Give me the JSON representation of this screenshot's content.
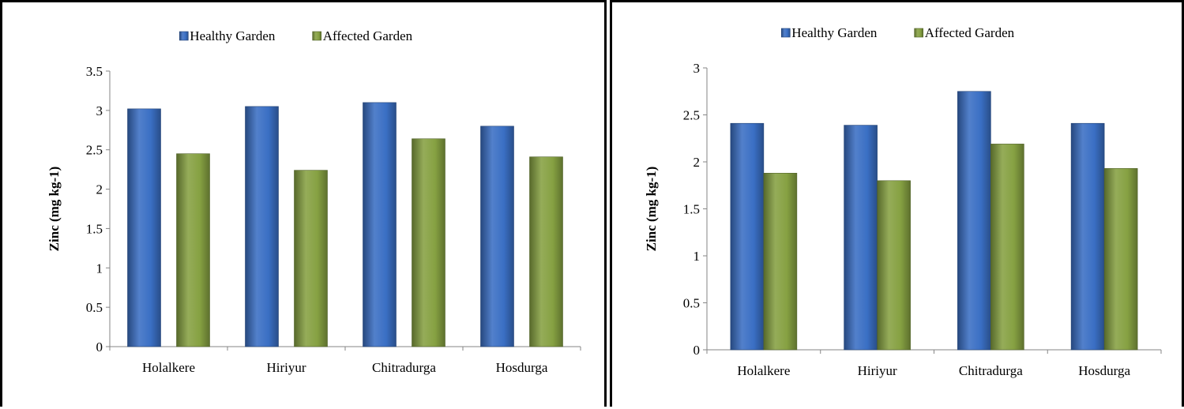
{
  "chart_data": [
    {
      "type": "bar",
      "categories": [
        "Holalkere",
        "Hiriyur",
        "Chitradurga",
        "Hosdurga"
      ],
      "series": [
        {
          "name": "Healthy Garden",
          "values": [
            3.02,
            3.05,
            3.1,
            2.8
          ],
          "color": "#3a6fc4"
        },
        {
          "name": "Affected Garden",
          "values": [
            2.45,
            2.24,
            2.64,
            2.41
          ],
          "color": "#86a142"
        }
      ],
      "ylabel": "Zinc (mg kg-1)",
      "ylim": [
        0,
        3.5
      ],
      "yticks": [
        "0",
        "0.5",
        "1",
        "1.5",
        "2",
        "2.5",
        "3",
        "3.5"
      ],
      "grid": false,
      "legend": "top-center"
    },
    {
      "type": "bar",
      "categories": [
        "Holalkere",
        "Hiriyur",
        "Chitradurga",
        "Hosdurga"
      ],
      "series": [
        {
          "name": "Healthy Garden",
          "values": [
            2.41,
            2.39,
            2.75,
            2.41
          ],
          "color": "#3a6fc4"
        },
        {
          "name": "Affected Garden",
          "values": [
            1.88,
            1.8,
            2.19,
            1.93
          ],
          "color": "#86a142"
        }
      ],
      "ylabel": "Zinc (mg kg-1)",
      "ylim": [
        0,
        3
      ],
      "yticks": [
        "0",
        "0.5",
        "1",
        "1.5",
        "2",
        "2.5",
        "3"
      ],
      "grid": false,
      "legend": "top-center"
    }
  ]
}
